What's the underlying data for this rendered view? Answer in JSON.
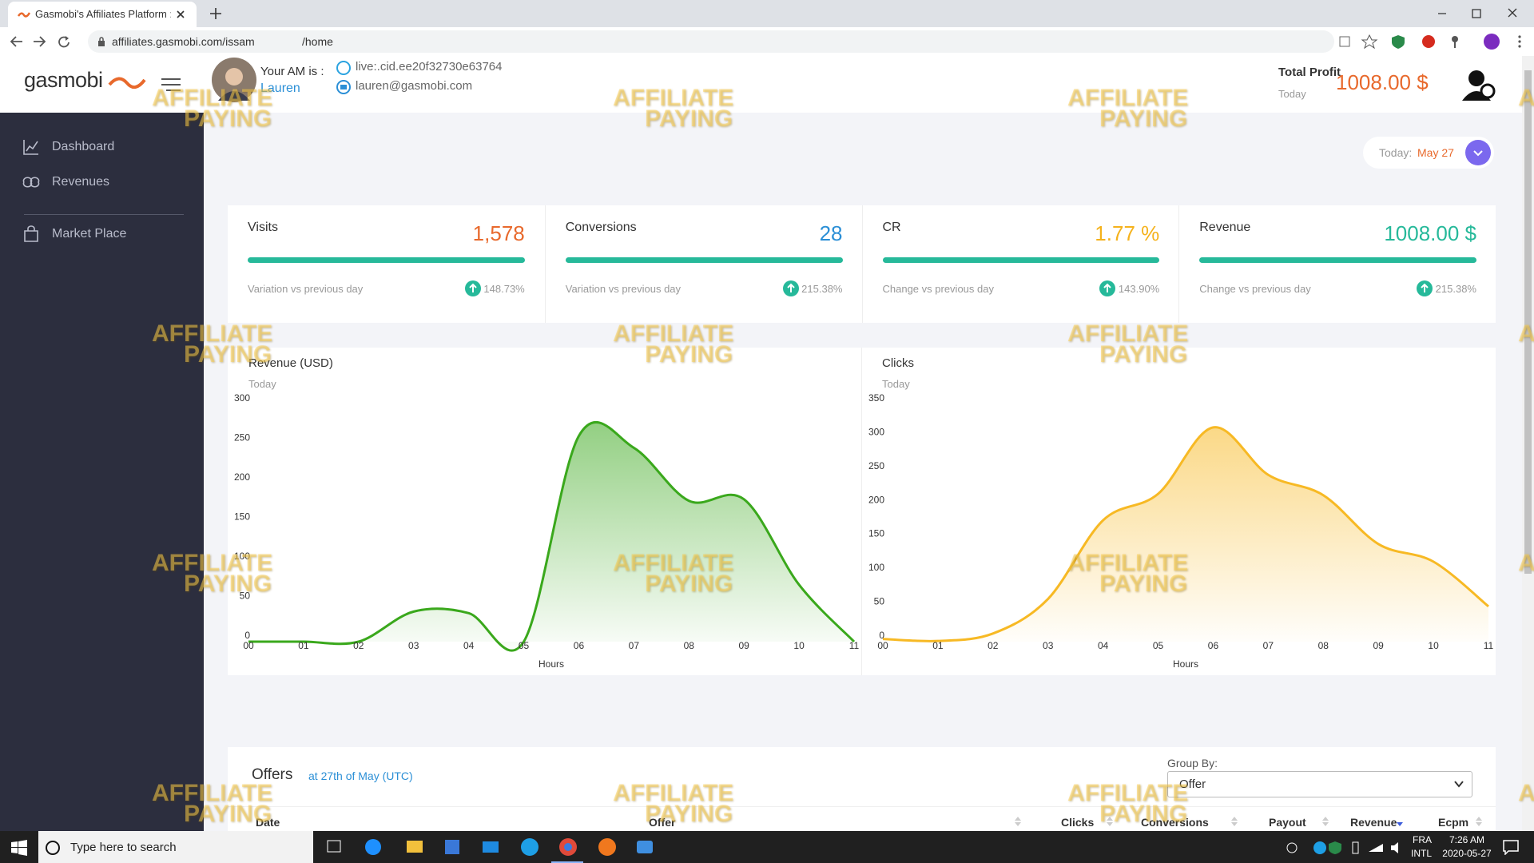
{
  "browser": {
    "tab_title": "Gasmobi's Affiliates Platform :: D",
    "url_start": "affiliates.gasmobi.com/issam",
    "url_end": "/home"
  },
  "header": {
    "logo": "gasmobi",
    "am_label": "Your AM is :",
    "am_name": "Lauren",
    "skype": "live:.cid.ee20f32730e63764",
    "email": "lauren@gasmobi.com",
    "total_profit_label": "Total Profit",
    "total_profit_period": "Today",
    "total_profit_value": "1008.00 $"
  },
  "sidebar": {
    "items": [
      "Dashboard",
      "Revenues",
      "Market Place"
    ]
  },
  "date_picker": {
    "label": "Today:",
    "value": "May 27"
  },
  "stats": [
    {
      "label": "Visits",
      "value": "1,578",
      "note": "Variation vs previous day",
      "change": "148.73%"
    },
    {
      "label": "Conversions",
      "value": "28",
      "note": "Variation vs previous day",
      "change": "215.38%"
    },
    {
      "label": "CR",
      "value": "1.77 %",
      "note": "Change vs previous day",
      "change": "143.90%"
    },
    {
      "label": "Revenue",
      "value": "1008.00 $",
      "note": "Change vs previous day",
      "change": "215.38%"
    }
  ],
  "chart_data": [
    {
      "type": "area",
      "title": "Revenue (USD)",
      "subtitle": "Today",
      "x_label": "Hours",
      "categories": [
        "00",
        "01",
        "02",
        "03",
        "04",
        "05",
        "06",
        "07",
        "08",
        "09",
        "10",
        "11"
      ],
      "values": [
        0,
        0,
        0,
        38,
        36,
        0,
        260,
        245,
        178,
        180,
        72,
        0
      ],
      "color": "#3aa81c",
      "ylim": [
        0,
        300
      ],
      "yticks": [
        0,
        50,
        100,
        150,
        200,
        250,
        300
      ]
    },
    {
      "type": "area",
      "title": "Clicks",
      "subtitle": "Today",
      "x_label": "Hours",
      "categories": [
        "00",
        "01",
        "02",
        "03",
        "04",
        "05",
        "06",
        "07",
        "08",
        "09",
        "10",
        "11"
      ],
      "values": [
        4,
        1,
        12,
        63,
        179,
        218,
        316,
        246,
        216,
        144,
        118,
        52
      ],
      "color": "#f7b924",
      "ylim": [
        0,
        350
      ],
      "yticks": [
        0,
        50,
        100,
        150,
        200,
        250,
        300,
        350
      ]
    }
  ],
  "offers": {
    "title": "Offers",
    "subtitle": "at 27th of May (UTC)",
    "group_by_label": "Group By:",
    "group_by_value": "Offer",
    "columns": [
      "Date",
      "Offer",
      "Clicks",
      "Conversions",
      "Payout",
      "Revenue",
      "Ecpm"
    ]
  },
  "taskbar": {
    "search": "Type here to search",
    "language": "FRA",
    "layout": "INTL",
    "time": "7:26 AM",
    "date": "2020-05-27"
  },
  "watermark": {
    "top": "AFFILIATE",
    "bottom": "PAYING"
  }
}
